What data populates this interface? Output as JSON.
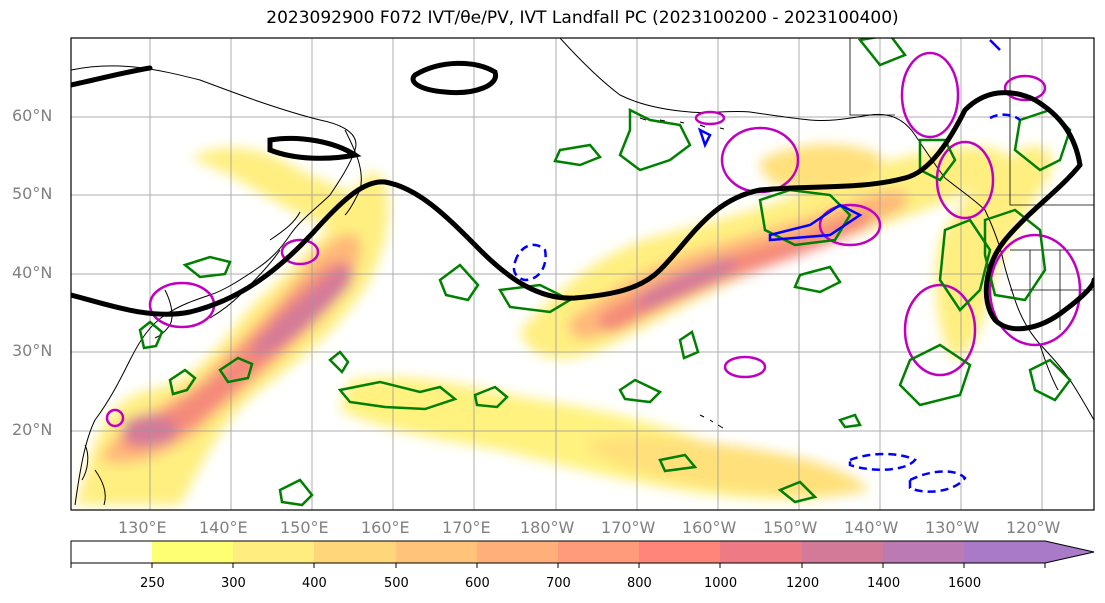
{
  "title": "2023092900 F072 IVT/θe/PV, IVT Landfall PC (2023100200 - 2023100400)",
  "latitude_labels": [
    "60°N",
    "50°N",
    "40°N",
    "30°N",
    "20°N"
  ],
  "longitude_labels": [
    "130°E",
    "140°E",
    "150°E",
    "160°E",
    "170°E",
    "180°W",
    "170°W",
    "160°W",
    "150°W",
    "140°W",
    "130°W",
    "120°W"
  ],
  "colorbar": {
    "ticks": [
      "250",
      "300",
      "400",
      "500",
      "600",
      "700",
      "800",
      "1000",
      "1200",
      "1400",
      "1600"
    ],
    "colors": [
      "#ffffff",
      "#ffff73",
      "#ffed80",
      "#ffd77a",
      "#ffc47a",
      "#ffb07a",
      "#ff9a7a",
      "#ff857a",
      "#ee7a85",
      "#d47a99",
      "#bb7ab4",
      "#a87ac7"
    ]
  },
  "map_colors": {
    "ivt_jet_axis": "#000000",
    "theta_e_contour": "#008000",
    "pv_contour": "#c000c0",
    "negative_contour": "#0000ff"
  }
}
